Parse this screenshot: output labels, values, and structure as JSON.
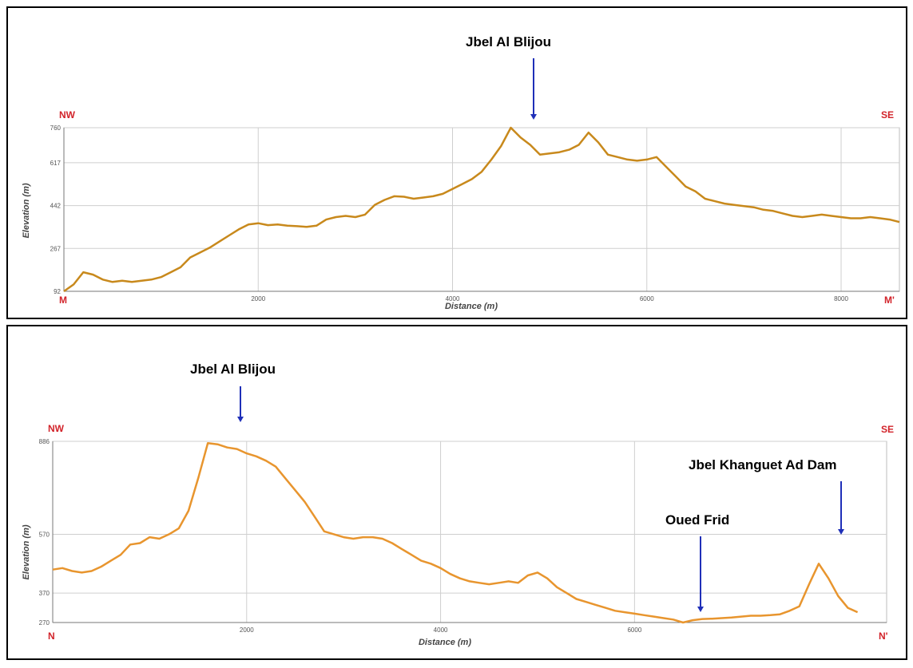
{
  "chart_data": [
    {
      "type": "line",
      "xlabel": "Distance (m)",
      "ylabel": "Elevation (m)",
      "xlim": [
        0,
        8600
      ],
      "ylim": [
        92,
        760
      ],
      "xticks": [
        2000,
        4000,
        6000,
        8000
      ],
      "yticks": [
        92,
        267,
        442,
        617,
        760
      ],
      "ytick_labels": [
        "92",
        "267",
        "442",
        "617",
        "760"
      ],
      "xtick_labels": [
        "2000",
        "4000",
        "6000",
        "8000"
      ],
      "grid": true,
      "line_color": "#c8891c",
      "corners": {
        "top_left": "NW",
        "top_right": "SE",
        "bottom_left": "M",
        "bottom_right": "M'"
      },
      "annotations": [
        {
          "text": "Jbel Al Blijou",
          "x": 4950,
          "arrow": true
        }
      ],
      "x": [
        0,
        100,
        200,
        300,
        400,
        500,
        600,
        700,
        800,
        900,
        1000,
        1100,
        1200,
        1300,
        1400,
        1500,
        1600,
        1700,
        1800,
        1900,
        2000,
        2100,
        2200,
        2300,
        2400,
        2500,
        2600,
        2700,
        2800,
        2900,
        3000,
        3100,
        3200,
        3300,
        3400,
        3500,
        3600,
        3700,
        3800,
        3900,
        4000,
        4100,
        4200,
        4300,
        4400,
        4500,
        4600,
        4700,
        4800,
        4900,
        5000,
        5100,
        5200,
        5300,
        5400,
        5500,
        5600,
        5700,
        5800,
        5900,
        6000,
        6100,
        6200,
        6300,
        6400,
        6500,
        6600,
        6700,
        6800,
        6900,
        7000,
        7100,
        7200,
        7300,
        7400,
        7500,
        7600,
        7700,
        7800,
        7900,
        8000,
        8100,
        8200,
        8300,
        8400,
        8500,
        8600
      ],
      "y": [
        92,
        120,
        170,
        160,
        140,
        130,
        135,
        130,
        135,
        140,
        150,
        170,
        190,
        230,
        250,
        270,
        295,
        320,
        345,
        365,
        370,
        362,
        365,
        360,
        358,
        355,
        360,
        385,
        395,
        400,
        395,
        405,
        445,
        465,
        480,
        478,
        470,
        475,
        480,
        490,
        510,
        530,
        550,
        580,
        630,
        685,
        760,
        720,
        690,
        650,
        655,
        660,
        670,
        690,
        740,
        700,
        650,
        640,
        630,
        625,
        630,
        640,
        600,
        560,
        520,
        500,
        470,
        460,
        450,
        445,
        440,
        435,
        425,
        420,
        410,
        400,
        395,
        400,
        405,
        400,
        395,
        390,
        390,
        395,
        390,
        385,
        375
      ]
    },
    {
      "type": "line",
      "xlabel": "Distance (m)",
      "ylabel": "Elevation (m)",
      "xlim": [
        0,
        8600
      ],
      "ylim": [
        270,
        886
      ],
      "xticks": [
        2000,
        4000,
        6000
      ],
      "yticks": [
        270,
        370,
        570,
        886
      ],
      "ytick_labels": [
        "270",
        "370",
        "570",
        "886"
      ],
      "xtick_labels": [
        "2000",
        "4000",
        "6000"
      ],
      "grid": true,
      "line_color": "#e8952e",
      "corners": {
        "top_left": "NW",
        "top_right": "SE",
        "bottom_left": "N",
        "bottom_right": "N'"
      },
      "annotations": [
        {
          "text": "Jbel Al Blijou",
          "x": 1850,
          "arrow": true
        },
        {
          "text": "Oued Frid",
          "x": 6500,
          "arrow": true
        },
        {
          "text": "Jbel Khanguet Ad Dam",
          "x": 8150,
          "arrow": true
        }
      ],
      "x": [
        0,
        100,
        200,
        300,
        400,
        500,
        600,
        700,
        800,
        900,
        1000,
        1100,
        1200,
        1300,
        1400,
        1500,
        1600,
        1700,
        1800,
        1900,
        2000,
        2100,
        2200,
        2300,
        2400,
        2500,
        2600,
        2700,
        2800,
        2900,
        3000,
        3100,
        3200,
        3300,
        3400,
        3500,
        3600,
        3700,
        3800,
        3900,
        4000,
        4100,
        4200,
        4300,
        4400,
        4500,
        4600,
        4700,
        4800,
        4900,
        5000,
        5100,
        5200,
        5300,
        5400,
        5500,
        5600,
        5700,
        5800,
        5900,
        6000,
        6100,
        6200,
        6300,
        6400,
        6500,
        6600,
        6700,
        6800,
        6900,
        7000,
        7100,
        7200,
        7300,
        7400,
        7500,
        7600,
        7700,
        7800,
        7900,
        8000,
        8100,
        8200,
        8300
      ],
      "y": [
        450,
        455,
        445,
        440,
        445,
        460,
        480,
        500,
        535,
        540,
        560,
        555,
        570,
        590,
        650,
        760,
        880,
        876,
        865,
        860,
        845,
        835,
        820,
        800,
        760,
        720,
        680,
        630,
        580,
        570,
        560,
        555,
        560,
        560,
        555,
        540,
        520,
        500,
        480,
        470,
        455,
        435,
        420,
        410,
        405,
        400,
        405,
        410,
        405,
        430,
        440,
        420,
        390,
        370,
        350,
        340,
        330,
        320,
        310,
        305,
        300,
        295,
        290,
        285,
        280,
        270,
        278,
        282,
        283,
        285,
        287,
        290,
        293,
        293,
        295,
        298,
        310,
        325,
        400,
        470,
        420,
        360,
        320,
        305
      ]
    }
  ],
  "panels": [
    {
      "callouts": [
        "Jbel Al Blijou"
      ]
    },
    {
      "callouts": [
        "Jbel Al Blijou",
        "Oued Frid",
        "Jbel Khanguet Ad Dam"
      ]
    }
  ]
}
